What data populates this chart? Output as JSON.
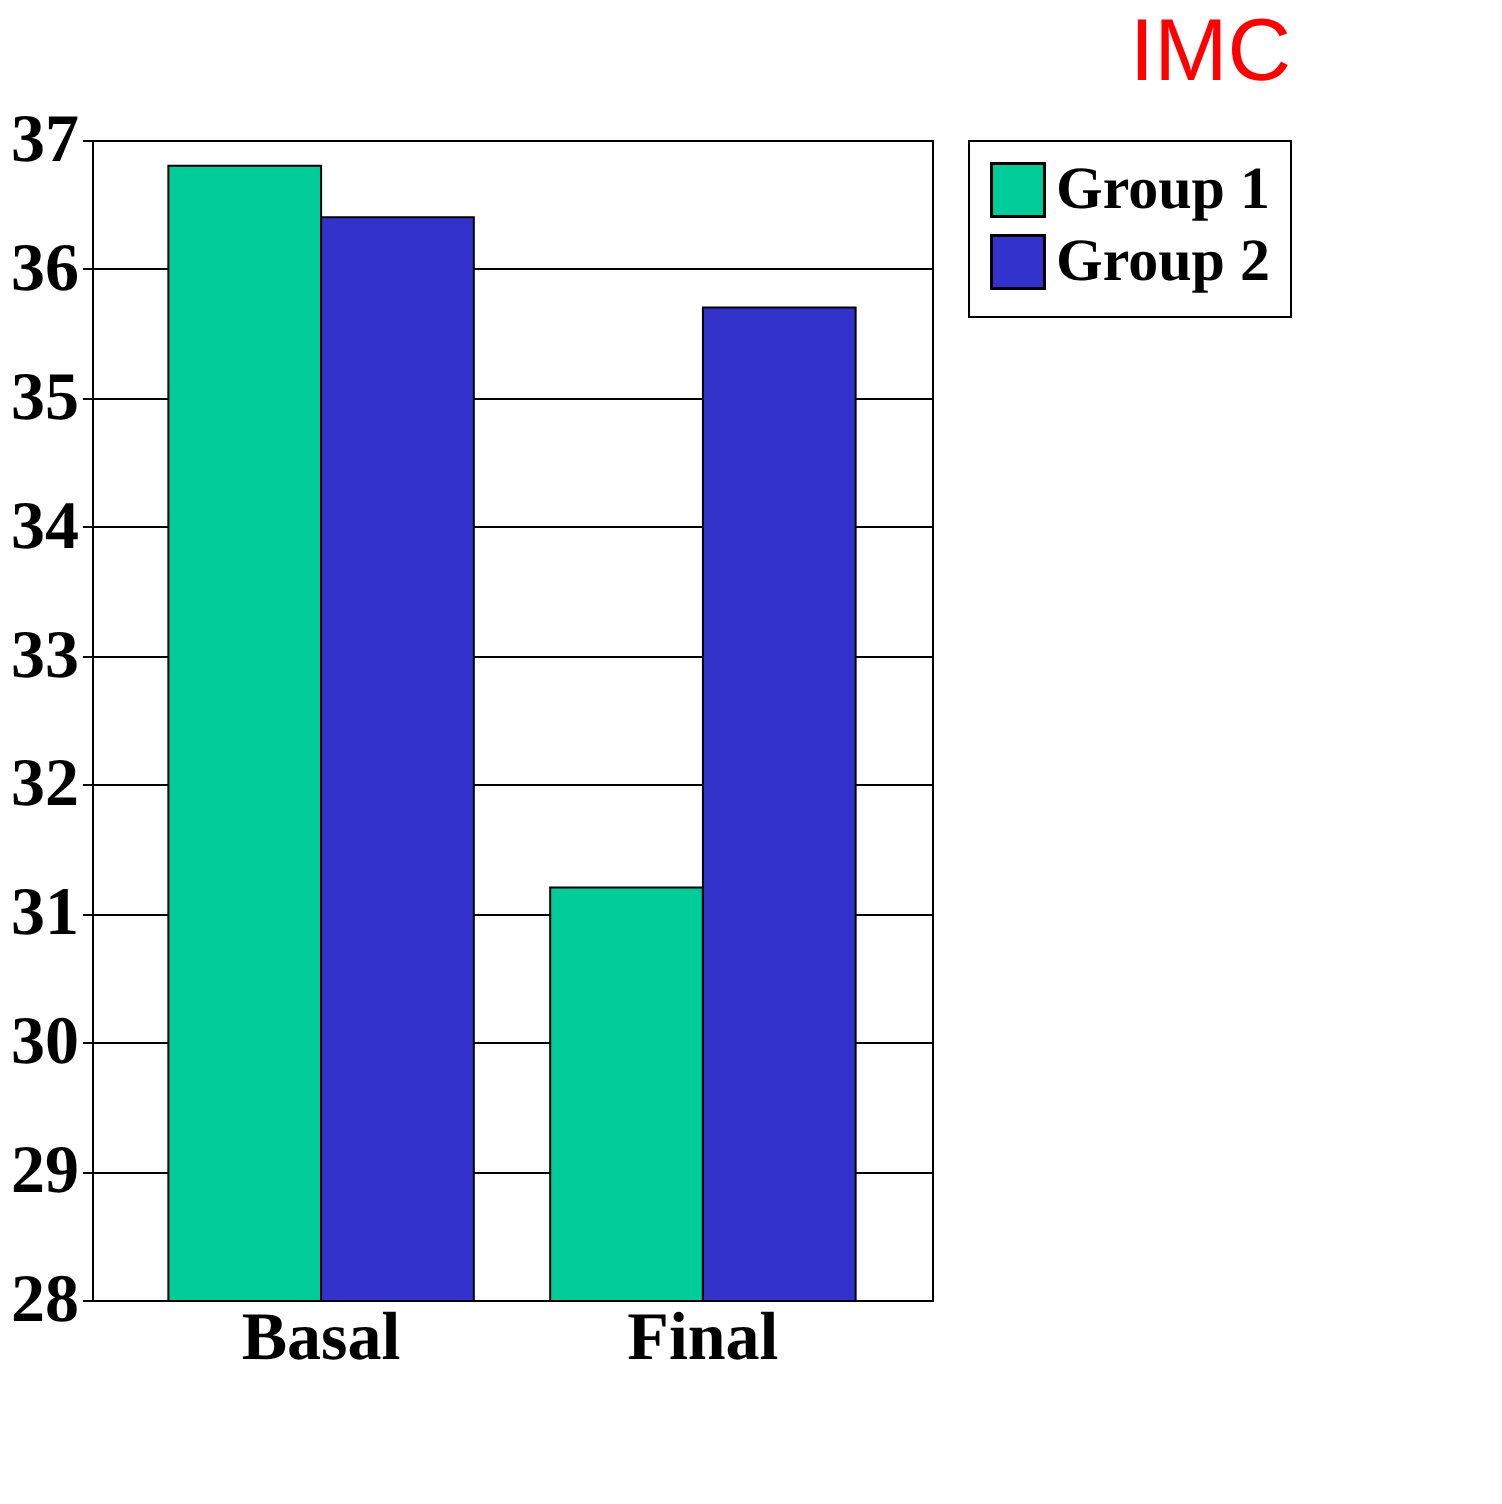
{
  "chart_data": {
    "type": "bar",
    "title": "IMC",
    "categories": [
      "Basal",
      "Final"
    ],
    "series": [
      {
        "name": "Group 1",
        "color": "#00cc99",
        "values": [
          36.8,
          31.2
        ]
      },
      {
        "name": "Group 2",
        "color": "#3333cc",
        "values": [
          36.4,
          35.7
        ]
      }
    ],
    "ylim": [
      28,
      37
    ],
    "yticks": [
      28,
      29,
      30,
      31,
      32,
      33,
      34,
      35,
      36,
      37
    ],
    "grid": "y",
    "legend": "right"
  }
}
